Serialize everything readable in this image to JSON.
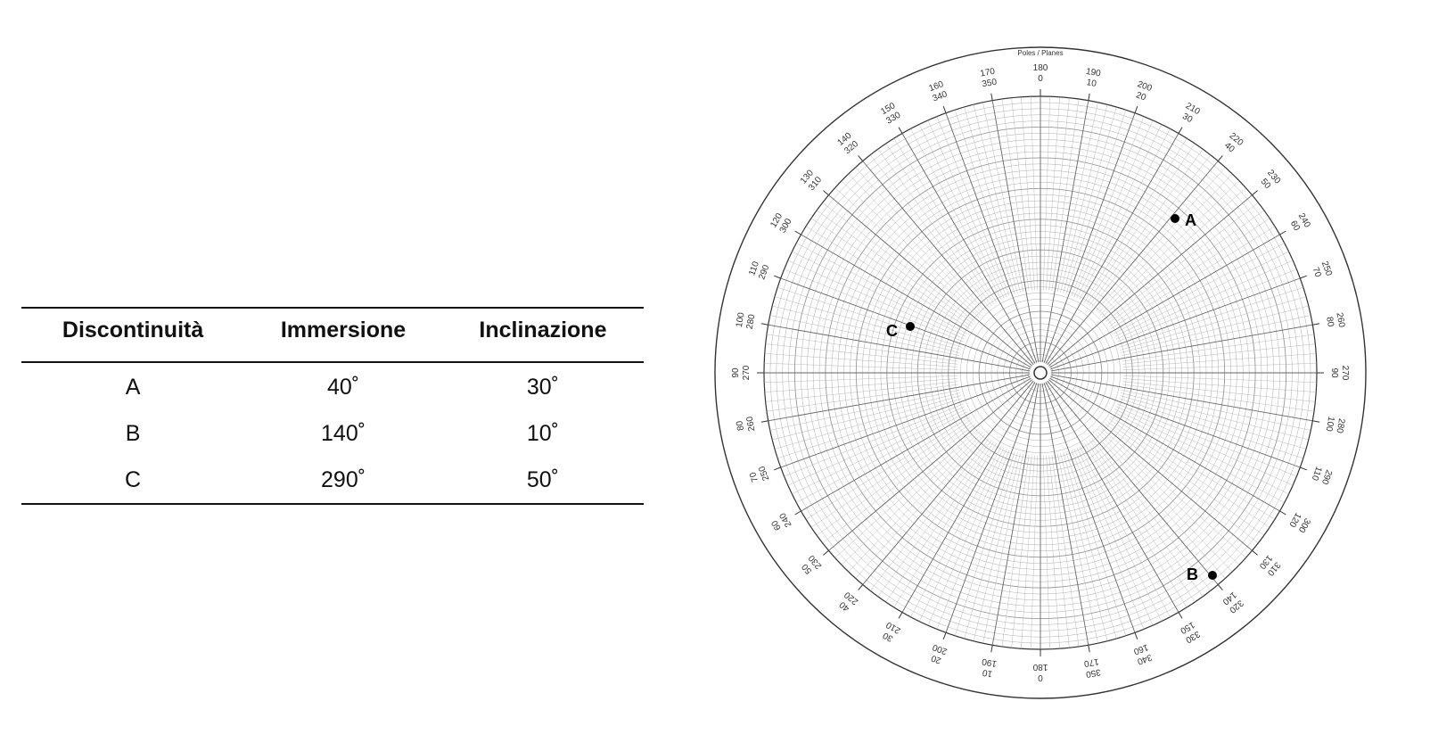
{
  "table": {
    "headers": [
      "Discontinuità",
      "Immersione",
      "Inclinazione"
    ],
    "rows": [
      {
        "label": "A",
        "immersione": "40˚",
        "inclinazione": "30˚"
      },
      {
        "label": "B",
        "immersione": "140˚",
        "inclinazione": "10˚"
      },
      {
        "label": "C",
        "immersione": "290˚",
        "inclinazione": "50˚"
      }
    ]
  },
  "net": {
    "title": "Poles / Planes",
    "labels": [
      "A",
      "B",
      "C"
    ],
    "ticks_outer": [
      "0",
      "10",
      "20",
      "30",
      "40",
      "50",
      "60",
      "70",
      "80",
      "90",
      "100",
      "110",
      "120",
      "130",
      "140",
      "150",
      "160",
      "170",
      "180",
      "190",
      "200",
      "210",
      "220",
      "230",
      "240",
      "250",
      "260",
      "270",
      "280",
      "290",
      "300",
      "310",
      "320",
      "330",
      "340",
      "350"
    ],
    "ticks_inner": [
      "180",
      "190",
      "200",
      "210",
      "220",
      "230",
      "240",
      "250",
      "260",
      "270",
      "280",
      "290",
      "300",
      "310",
      "320",
      "330",
      "340",
      "350",
      "0",
      "10",
      "20",
      "30",
      "40",
      "50",
      "60",
      "70",
      "80",
      "90",
      "100",
      "110",
      "120",
      "130",
      "140",
      "150",
      "160",
      "170"
    ],
    "colors": {
      "grid": "#555555",
      "points": "#000000"
    }
  }
}
